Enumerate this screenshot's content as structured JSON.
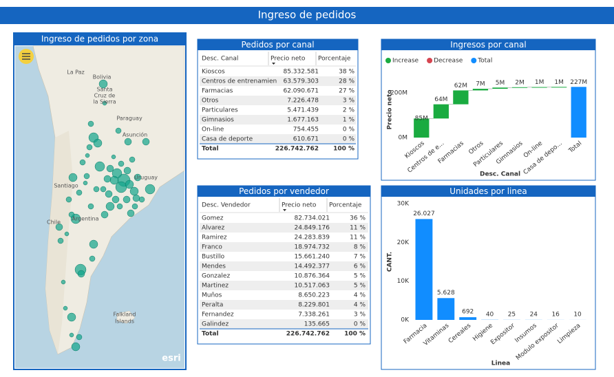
{
  "header": {
    "title": "Ingreso de pedidos"
  },
  "map": {
    "title": "Ingreso de pedidos por zona",
    "labels": [
      "La Paz",
      "Bolivia",
      "Santa",
      "Cruz de",
      "la Sierra",
      "Paraguay",
      "Asunción",
      "Santiago",
      "Uruguay",
      "Argentina",
      "Chile",
      "Falkland",
      "Islands"
    ],
    "attribution": "esri"
  },
  "tables": [
    {
      "title": "Pedidos por canal",
      "columns": [
        "Desc. Canal",
        "Precio neto",
        "Porcentaje"
      ],
      "rows": [
        [
          "Kioscos",
          "85.332.581",
          "38 %"
        ],
        [
          "Centros de entrenamien",
          "63.579.303",
          "28 %"
        ],
        [
          "Farmacias",
          "62.090.671",
          "27 %"
        ],
        [
          "Otros",
          "7.226.478",
          "3 %"
        ],
        [
          "Particulares",
          "5.471.439",
          "2 %"
        ],
        [
          "Gimnasios",
          "1.677.163",
          "1 %"
        ],
        [
          "On-line",
          "754.455",
          "0 %"
        ],
        [
          "Casa de deporte",
          "610.671",
          "0 %"
        ]
      ],
      "total": [
        "Total",
        "226.742.762",
        "100 %"
      ]
    },
    {
      "title": "Pedidos por vendedor",
      "columns": [
        "Desc. Vendedor",
        "Precio neto",
        "Porcentaje"
      ],
      "rows": [
        [
          "Gomez",
          "82.734.021",
          "36 %"
        ],
        [
          "Alvarez",
          "24.849.176",
          "11 %"
        ],
        [
          "Ramirez",
          "24.283.839",
          "11 %"
        ],
        [
          "Franco",
          "18.974.732",
          "8 %"
        ],
        [
          "Bustillo",
          "15.661.240",
          "7 %"
        ],
        [
          "Mendes",
          "14.492.377",
          "6 %"
        ],
        [
          "Gonzalez",
          "10.876.364",
          "5 %"
        ],
        [
          "Martinez",
          "10.517.063",
          "5 %"
        ],
        [
          "Muños",
          "8.650.223",
          "4 %"
        ],
        [
          "Peralta",
          "8.229.801",
          "4 %"
        ],
        [
          "Fernandez",
          "7.338.261",
          "3 %"
        ],
        [
          "Galindez",
          "135.665",
          "0 %"
        ]
      ],
      "total": [
        "Total",
        "226.742.762",
        "100 %"
      ]
    }
  ],
  "chart_data": [
    {
      "type": "waterfall",
      "title": "Ingresos por canal",
      "legend": [
        {
          "name": "Increase",
          "color": "#1aab40"
        },
        {
          "name": "Decrease",
          "color": "#d64550"
        },
        {
          "name": "Total",
          "color": "#118dff"
        }
      ],
      "categories": [
        "Kioscos",
        "Centros de e...",
        "Farmacias",
        "Otros",
        "Particulares",
        "Gimnasios",
        "On-line",
        "Casa de depo...",
        "Total"
      ],
      "values": [
        85332581,
        63579303,
        62090671,
        7226478,
        5471439,
        1677163,
        754455,
        610671,
        226742762
      ],
      "value_labels": [
        "85M",
        "64M",
        "62M",
        "7M",
        "5M",
        "2M",
        "1M",
        "1M",
        "227M"
      ],
      "ylim": [
        0,
        250000000
      ],
      "yticks": [
        {
          "value": 0,
          "label": "0M"
        },
        {
          "value": 200000000,
          "label": "200M"
        }
      ],
      "y_label": "Precio neto",
      "x_label": "Desc. Canal"
    },
    {
      "type": "bar",
      "title": "Unidades por linea",
      "color": "#118dff",
      "categories": [
        "Farmacia",
        "Vitaminas",
        "Cereales",
        "Higiene",
        "Expositor",
        "Insumos",
        "Modulo expositor",
        "Limpieza"
      ],
      "values": [
        26027,
        5628,
        692,
        40,
        25,
        24,
        16,
        10
      ],
      "value_labels": [
        "26.027",
        "5.628",
        "692",
        "40",
        "25",
        "24",
        "16",
        "10"
      ],
      "ylim": [
        0,
        30000
      ],
      "yticks": [
        {
          "value": 0,
          "label": "0K"
        },
        {
          "value": 10000,
          "label": "10K"
        },
        {
          "value": 20000,
          "label": "20K"
        },
        {
          "value": 30000,
          "label": "30K"
        }
      ],
      "y_label": "CANT.",
      "x_label": "Linea"
    }
  ]
}
